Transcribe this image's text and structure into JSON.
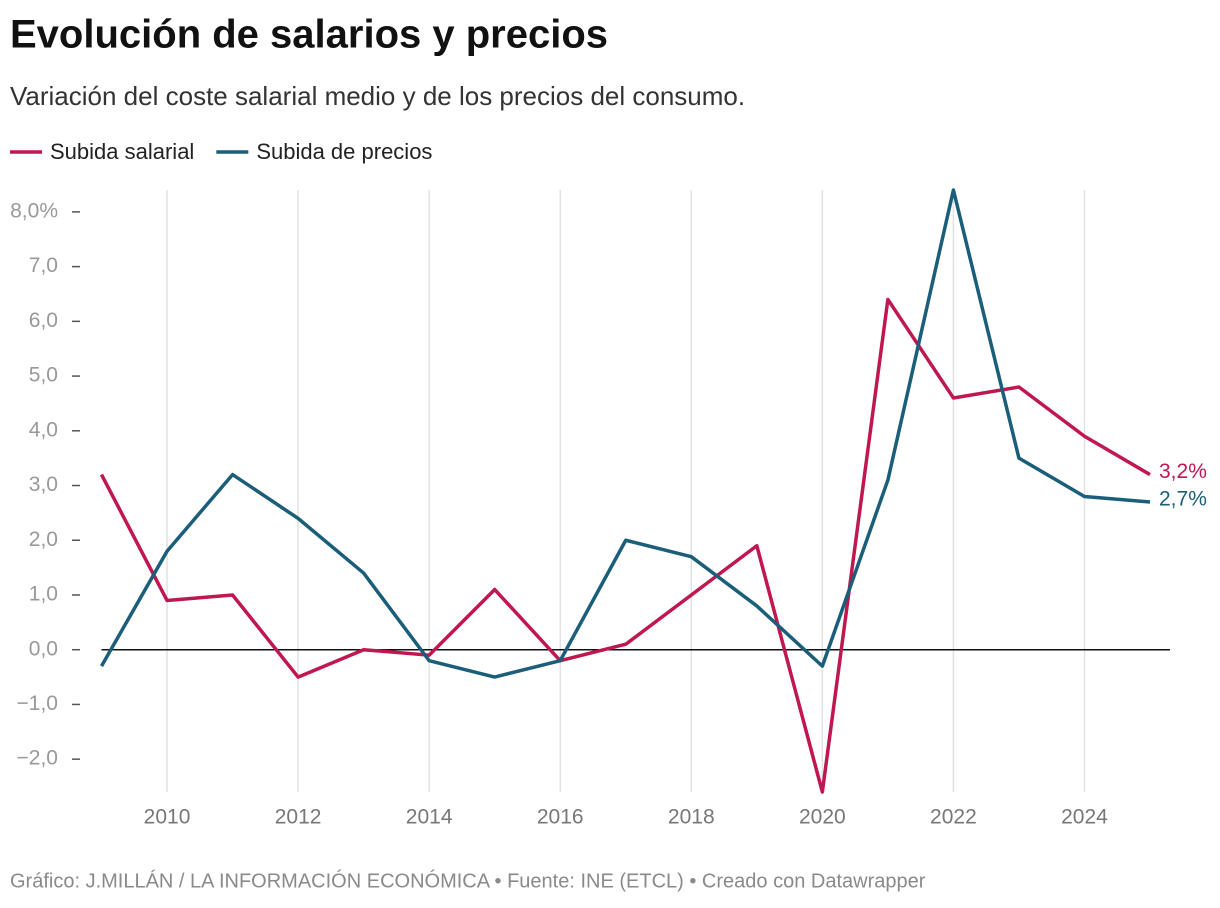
{
  "chart_data": {
    "type": "line",
    "title": "Evolución de salarios y precios",
    "subtitle": "Variación del coste salarial medio y de los precios del consumo.",
    "source": "Gráfico: J.MILLÁN / LA INFORMACIÓN ECONÓMICA • Fuente: INE (ETCL) • Creado con Datawrapper",
    "x": [
      2009,
      2010,
      2011,
      2012,
      2013,
      2014,
      2015,
      2016,
      2017,
      2018,
      2019,
      2020,
      2021,
      2022,
      2023,
      2024,
      2025
    ],
    "series": [
      {
        "name": "Subida salarial",
        "color": "#c0174f",
        "end_label": "3,2%",
        "values": [
          3.2,
          0.9,
          1.0,
          -0.5,
          0.0,
          -0.1,
          1.1,
          -0.2,
          0.1,
          1.0,
          1.9,
          -2.6,
          6.4,
          4.6,
          4.8,
          3.9,
          3.2
        ]
      },
      {
        "name": "Subida de precios",
        "color": "#1b5e7a",
        "end_label": "2,7%",
        "values": [
          -0.3,
          1.8,
          3.2,
          2.4,
          1.4,
          -0.2,
          -0.5,
          -0.2,
          2.0,
          1.7,
          0.8,
          -0.3,
          3.1,
          8.4,
          3.5,
          2.8,
          2.7
        ]
      }
    ],
    "xlim": [
      2009,
      2025
    ],
    "xticks": [
      2010,
      2012,
      2014,
      2016,
      2018,
      2020,
      2022,
      2024
    ],
    "ylim": [
      -2.6,
      8.4
    ],
    "yticks": [
      {
        "value": -2,
        "label": "−2,0"
      },
      {
        "value": -1,
        "label": "−1,0"
      },
      {
        "value": 0,
        "label": "0,0"
      },
      {
        "value": 1,
        "label": "1,0"
      },
      {
        "value": 2,
        "label": "2,0"
      },
      {
        "value": 3,
        "label": "3,0"
      },
      {
        "value": 4,
        "label": "4,0"
      },
      {
        "value": 5,
        "label": "5,0"
      },
      {
        "value": 6,
        "label": "6,0"
      },
      {
        "value": 7,
        "label": "7,0"
      },
      {
        "value": 8,
        "label": "8,0%"
      }
    ],
    "grid": true,
    "legend": "top-left"
  }
}
